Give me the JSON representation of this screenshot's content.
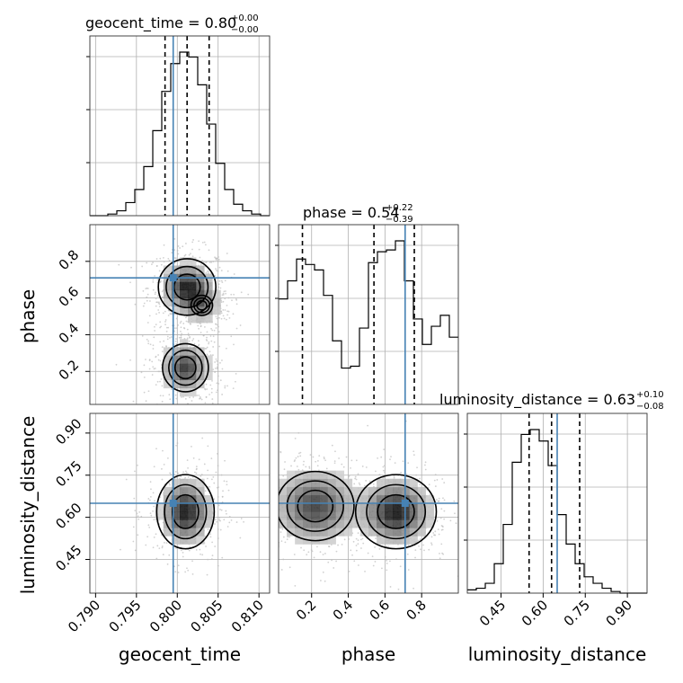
{
  "figure": {
    "titles": {
      "geocent_time": {
        "lead": "geocent_time = 0.80",
        "sup": "+0.00",
        "sub": "−0.00"
      },
      "phase": {
        "lead": "phase = 0.54",
        "sup": "+0.22",
        "sub": "−0.39"
      },
      "luminosity_distance": {
        "lead": "luminosity_distance = 0.63",
        "sup": "+0.10",
        "sub": "−0.08"
      }
    },
    "axis_labels": {
      "x_geocent_time": "geocent_time",
      "x_phase": "phase",
      "x_luminosity_distance": "luminosity_distance",
      "y_phase": "phase",
      "y_luminosity_distance": "luminosity_distance"
    }
  },
  "chart_data": {
    "type": "corner",
    "parameters": [
      "geocent_time",
      "phase",
      "luminosity_distance"
    ],
    "truths": {
      "geocent_time": 0.7995,
      "phase": 0.71,
      "luminosity_distance": 0.65
    },
    "grid": true,
    "ranges": {
      "geocent_time": [
        0.7893,
        0.8113
      ],
      "phase": [
        0.02,
        1.0
      ],
      "luminosity_distance": [
        0.33,
        0.97
      ]
    },
    "ticks": {
      "geocent_time": [
        0.79,
        0.795,
        0.8,
        0.805,
        0.81
      ],
      "geocent_time_labels": [
        "0.790",
        "0.795",
        "0.800",
        "0.805",
        "0.810"
      ],
      "phase": [
        0.2,
        0.4,
        0.6,
        0.8
      ],
      "phase_labels": [
        "0.2",
        "0.4",
        "0.6",
        "0.8"
      ],
      "luminosity_distance": [
        0.45,
        0.6,
        0.75,
        0.9
      ],
      "luminosity_distance_labels": [
        "0.45",
        "0.60",
        "0.75",
        "0.90"
      ]
    },
    "quantiles": {
      "geocent_time": [
        0.7985,
        0.8012,
        0.8039
      ],
      "phase": [
        0.15,
        0.54,
        0.76
      ],
      "luminosity_distance": [
        0.55,
        0.63,
        0.73
      ]
    },
    "histograms": {
      "geocent_time": {
        "edges_start": 0.7893,
        "bin_width": 0.0011,
        "counts": [
          0,
          0,
          1,
          3,
          8,
          16,
          30,
          52,
          76,
          93,
          100,
          97,
          80,
          56,
          32,
          16,
          7,
          3,
          1,
          0
        ]
      },
      "phase": {
        "edges_start": 0.02,
        "bin_width": 0.049,
        "counts": [
          58,
          68,
          80,
          77,
          74,
          60,
          35,
          20,
          21,
          42,
          78,
          84,
          85,
          90,
          68,
          47,
          33,
          43,
          49,
          37
        ]
      },
      "luminosity_distance": {
        "edges_start": 0.33,
        "bin_width": 0.032,
        "counts": [
          2,
          3,
          6,
          18,
          42,
          80,
          97,
          100,
          93,
          78,
          48,
          30,
          18,
          10,
          6,
          3,
          1,
          0,
          0,
          0
        ]
      }
    },
    "density_modes": {
      "phase_vs_geocent_time": [
        {
          "x": 0.8012,
          "y": 0.66,
          "sx": 0.0016,
          "sy": 0.07,
          "weight": 1.0
        },
        {
          "x": 0.803,
          "y": 0.56,
          "sx": 0.0012,
          "sy": 0.05,
          "weight": 0.5
        },
        {
          "x": 0.801,
          "y": 0.22,
          "sx": 0.0015,
          "sy": 0.07,
          "weight": 0.85
        }
      ],
      "luminosity_distance_vs_geocent_time": [
        {
          "x": 0.801,
          "y": 0.62,
          "sx": 0.0016,
          "sy": 0.06,
          "weight": 1.0
        }
      ],
      "luminosity_distance_vs_phase": [
        {
          "x": 0.22,
          "y": 0.64,
          "sx": 0.12,
          "sy": 0.07,
          "weight": 0.8
        },
        {
          "x": 0.66,
          "y": 0.62,
          "sx": 0.1,
          "sy": 0.06,
          "weight": 1.0
        }
      ]
    },
    "colors": {
      "truth": "#4682b4",
      "line": "#000000",
      "grid": "#b0b0b0",
      "scatter": "#bdbdbd"
    }
  }
}
